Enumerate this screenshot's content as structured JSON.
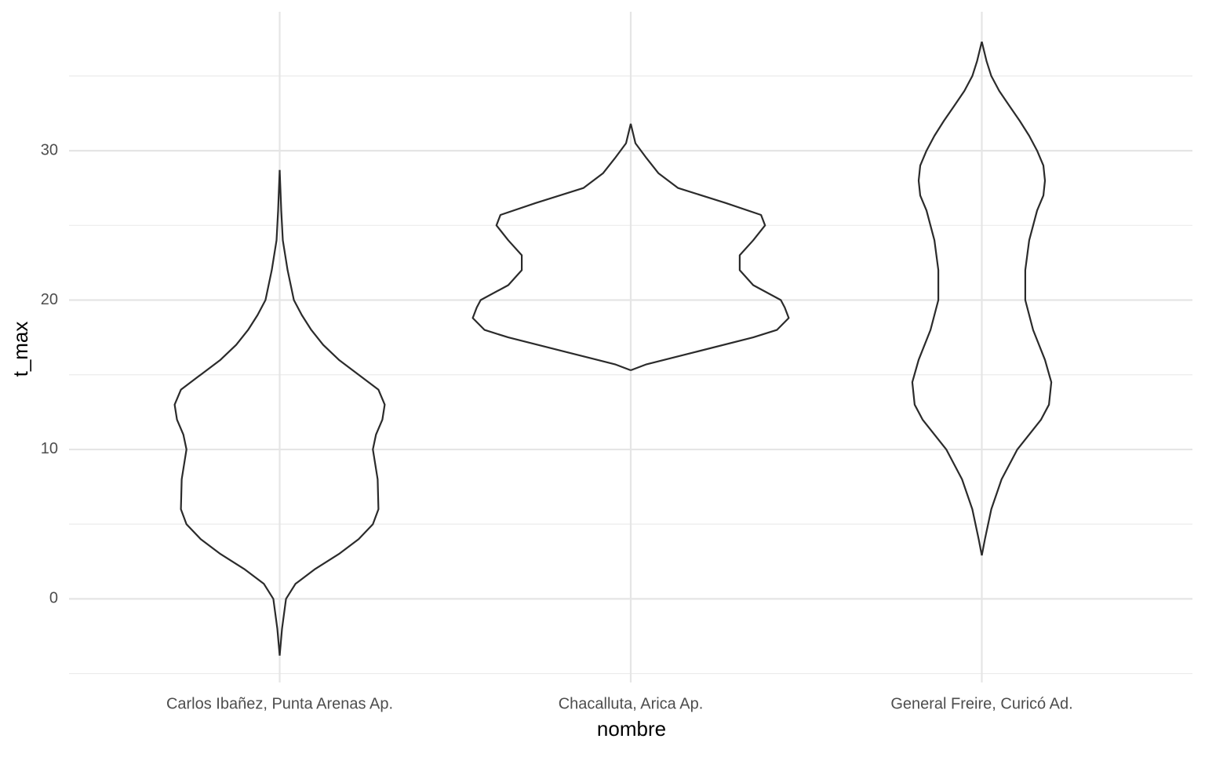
{
  "chart_data": {
    "type": "violin",
    "x_label": "nombre",
    "y_label": "t_max",
    "categories": [
      "Carlos Ibañez, Punta Arenas Ap.",
      "Chacalluta, Arica Ap.",
      "General Freire, Curicó Ad."
    ],
    "violins": [
      {
        "y": [
          -3.8,
          -2,
          0,
          1,
          2,
          3,
          4,
          5,
          6,
          8,
          10,
          11,
          12,
          13,
          14,
          15,
          16,
          17,
          18,
          19,
          20,
          22,
          24,
          26,
          28.7
        ],
        "density": [
          0,
          0.015,
          0.04,
          0.1,
          0.225,
          0.375,
          0.5,
          0.59,
          0.625,
          0.62,
          0.59,
          0.61,
          0.65,
          0.665,
          0.625,
          0.5,
          0.375,
          0.275,
          0.2,
          0.14,
          0.09,
          0.05,
          0.02,
          0.01,
          0
        ]
      },
      {
        "y": [
          15.3,
          15.7,
          16.5,
          17.5,
          18,
          18.8,
          19.5,
          20,
          21,
          22,
          23,
          24,
          25,
          25.7,
          26.5,
          27.5,
          28.5,
          29.5,
          30.5,
          31.8
        ],
        "density": [
          0,
          0.1,
          0.4,
          0.775,
          0.925,
          1,
          0.975,
          0.95,
          0.775,
          0.69,
          0.69,
          0.775,
          0.85,
          0.825,
          0.6,
          0.3,
          0.175,
          0.1,
          0.03,
          0
        ]
      },
      {
        "y": [
          2.9,
          4,
          6,
          8,
          10,
          11,
          12,
          13,
          14.5,
          16,
          18,
          20,
          22,
          24,
          26,
          27,
          28,
          29,
          30,
          31,
          32,
          33,
          34,
          35,
          36,
          37.3
        ],
        "density": [
          0,
          0.02,
          0.06,
          0.125,
          0.225,
          0.3,
          0.375,
          0.425,
          0.44,
          0.4,
          0.325,
          0.275,
          0.275,
          0.3,
          0.35,
          0.39,
          0.4,
          0.39,
          0.35,
          0.3,
          0.24,
          0.175,
          0.11,
          0.06,
          0.03,
          0
        ]
      }
    ],
    "color": "#2b2b2b",
    "ylim": [
      -5.6,
      39.3
    ],
    "yticks": [
      0,
      10,
      20,
      30
    ],
    "yminor": [
      -5,
      5,
      15,
      25,
      35
    ],
    "grid": true
  }
}
